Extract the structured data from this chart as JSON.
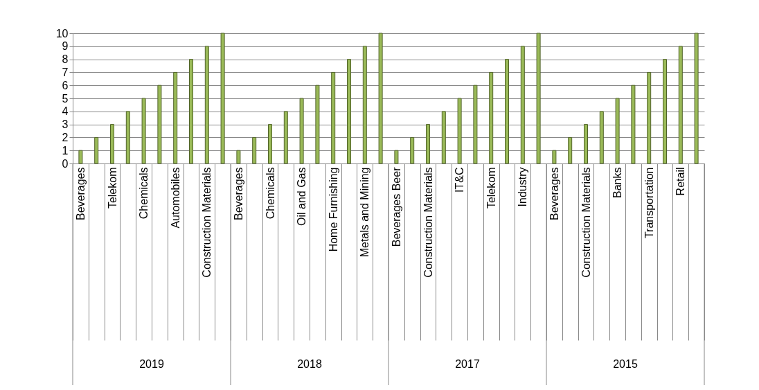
{
  "chart_data": {
    "type": "bar",
    "categories": [
      "Beverages",
      null,
      "Telekom",
      null,
      "Chemicals",
      null,
      "Automobiles",
      null,
      "Construction Materials",
      null,
      "Beverages",
      null,
      "Chemicals",
      null,
      "Oil and Gas",
      null,
      "Home Furnishing",
      null,
      "Metals and Mining",
      null,
      "Beverages Beer",
      null,
      "Construction Materials",
      null,
      "IT&C",
      null,
      "Telekom",
      null,
      "Industry",
      null,
      "Beverages",
      null,
      "Construction Materials",
      null,
      "Banks",
      null,
      "Transportation",
      null,
      "Retail",
      null
    ],
    "values": [
      1,
      2,
      3,
      4,
      5,
      6,
      7,
      8,
      9,
      10,
      1,
      2,
      3,
      4,
      5,
      6,
      7,
      8,
      9,
      10,
      1,
      2,
      3,
      4,
      5,
      6,
      7,
      8,
      9,
      10,
      1,
      2,
      3,
      4,
      5,
      6,
      7,
      8,
      9,
      10
    ],
    "color": "#9bbb59",
    "ylim": [
      0,
      10
    ],
    "yticks": [
      0,
      1,
      2,
      3,
      4,
      5,
      6,
      7,
      8,
      9,
      10
    ],
    "grid": "y",
    "annotations": [
      "2019",
      "2018",
      "2017",
      "2015"
    ]
  }
}
